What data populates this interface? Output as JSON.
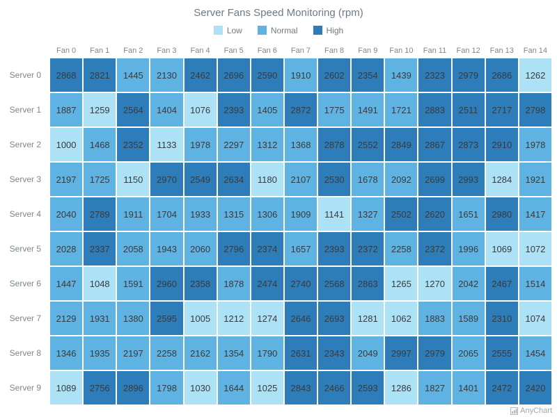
{
  "title": "Server Fans Speed Monitoring (rpm)",
  "legend": {
    "items": [
      {
        "label": "Low",
        "color": "#ade1f5"
      },
      {
        "label": "Normal",
        "color": "#5eb3e2"
      },
      {
        "label": "High",
        "color": "#2d7dbb"
      }
    ]
  },
  "chart_data": {
    "type": "heatmap",
    "title": "Server Fans Speed Monitoring (rpm)",
    "legend_position": "top",
    "columns": [
      "Fan 0",
      "Fan 1",
      "Fan 2",
      "Fan 3",
      "Fan 4",
      "Fan 5",
      "Fan 6",
      "Fan 7",
      "Fan 8",
      "Fan 9",
      "Fan 10",
      "Fan 11",
      "Fan 12",
      "Fan 13",
      "Fan 14"
    ],
    "rows": [
      "Server 0",
      "Server 1",
      "Server 2",
      "Server 3",
      "Server 4",
      "Server 5",
      "Server 6",
      "Server 7",
      "Server 8",
      "Server 9"
    ],
    "values": [
      [
        2868,
        2821,
        1445,
        2130,
        2462,
        2696,
        2590,
        1910,
        2602,
        2354,
        1439,
        2323,
        2979,
        2686,
        1262
      ],
      [
        1887,
        1259,
        2564,
        1404,
        1076,
        2393,
        1405,
        2872,
        1775,
        1491,
        1721,
        2883,
        2511,
        2717,
        2798
      ],
      [
        1000,
        1468,
        2352,
        1133,
        1978,
        2297,
        1312,
        1368,
        2878,
        2552,
        2849,
        2867,
        2873,
        2910,
        1978
      ],
      [
        2197,
        1725,
        1150,
        2970,
        2549,
        2634,
        1180,
        2107,
        2530,
        1678,
        2092,
        2699,
        2993,
        1284,
        1921
      ],
      [
        2040,
        2789,
        1911,
        1704,
        1933,
        1315,
        1306,
        1909,
        1141,
        1327,
        2502,
        2620,
        1651,
        2980,
        1417
      ],
      [
        2028,
        2337,
        2058,
        1943,
        2060,
        2796,
        2374,
        1657,
        2393,
        2372,
        2258,
        2372,
        1996,
        1069,
        1072
      ],
      [
        1447,
        1048,
        1591,
        2960,
        2358,
        1878,
        2474,
        2740,
        2568,
        2863,
        1265,
        1270,
        2042,
        2467,
        1514
      ],
      [
        2129,
        1931,
        1380,
        2595,
        1005,
        1212,
        1274,
        2646,
        2693,
        1281,
        1062,
        1883,
        1589,
        2310,
        1074
      ],
      [
        1346,
        1935,
        2197,
        2258,
        2162,
        1354,
        1790,
        2631,
        2343,
        2049,
        2997,
        2979,
        2065,
        2555,
        1454
      ],
      [
        1089,
        2756,
        2896,
        1798,
        1030,
        1644,
        1025,
        2843,
        2466,
        2593,
        1286,
        1827,
        1401,
        2472,
        2420
      ]
    ],
    "color_scale": {
      "ranges": [
        {
          "label": "Low",
          "max": 1300,
          "color": "#ade1f5"
        },
        {
          "label": "Normal",
          "min": 1300,
          "max": 2300,
          "color": "#5eb3e2"
        },
        {
          "label": "High",
          "min": 2300,
          "color": "#2d7dbb"
        }
      ]
    },
    "value_label_color": "#343b41"
  },
  "watermark": "AnyChart"
}
